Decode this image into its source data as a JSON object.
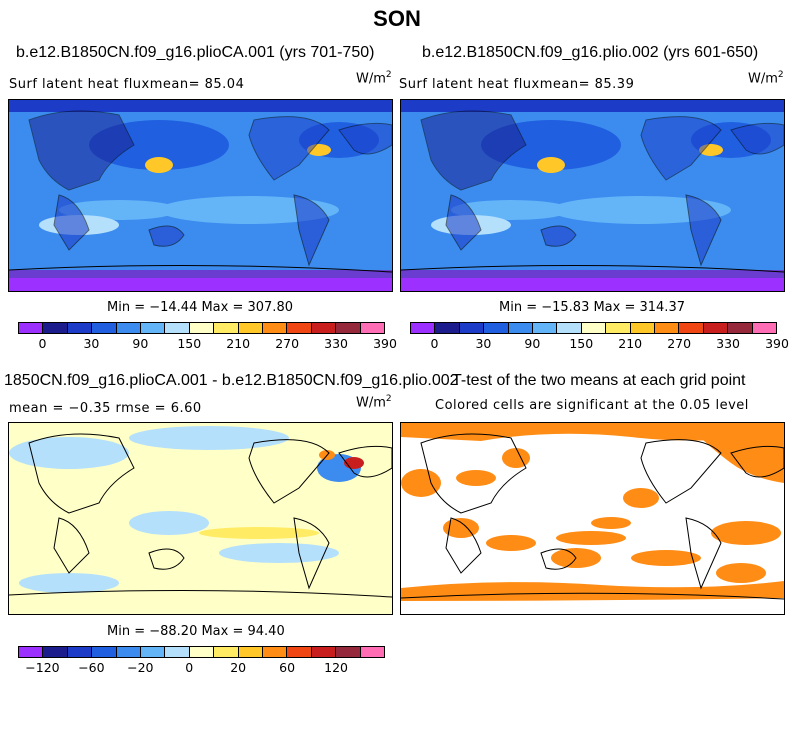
{
  "figure": {
    "title": "SON"
  },
  "panel1": {
    "title": "b.e12.B1850CN.f09_g16.plioCA.001 (yrs 701-750)",
    "left_text": "Surf latent heat fluxmean=  85.04",
    "units_base": "W/m",
    "units_exp": "2",
    "minmax": "Min = −14.44 Max = 307.80"
  },
  "panel2": {
    "title": "b.e12.B1850CN.f09_g16.plio.002 (yrs 601-650)",
    "left_text": "Surf latent heat fluxmean=  85.39",
    "units_base": "W/m",
    "units_exp": "2",
    "minmax": "Min = −15.83 Max = 314.37"
  },
  "panel3": {
    "title": "1850CN.f09_g16.plioCA.001 - b.e12.B1850CN.f09_g16.plio.002",
    "left_text": "mean =  −0.35     rmse =    6.60",
    "units_base": "W/m",
    "units_exp": "2",
    "minmax": "Min = −88.20 Max = 94.40"
  },
  "panel4": {
    "title": "T-test of the two means at each grid point",
    "subtitle": "Colored cells are significant at the 0.05 level"
  },
  "colorbar_abs": {
    "labels": [
      "0",
      "30",
      "90",
      "150",
      "210",
      "270",
      "330",
      "390"
    ],
    "colors": [
      "#9b30ff",
      "#1c1c8c",
      "#1c3cc8",
      "#2060e0",
      "#3c8cf0",
      "#64b4f8",
      "#b4e0fc",
      "#ffffc8",
      "#ffec64",
      "#ffc828",
      "#ff8c14",
      "#f04614",
      "#c81e1e",
      "#96283c",
      "#ff6eb4"
    ]
  },
  "colorbar_diff": {
    "labels": [
      "−120",
      "−60",
      "−20",
      "0",
      "20",
      "60",
      "120"
    ],
    "colors": [
      "#9b30ff",
      "#1c1c8c",
      "#1c3cc8",
      "#2060e0",
      "#3c8cf0",
      "#64b4f8",
      "#b4e0fc",
      "#ffffc8",
      "#ffec64",
      "#ffc828",
      "#ff8c14",
      "#f04614",
      "#c81e1e",
      "#96283c",
      "#ff6eb4"
    ]
  },
  "colors": {
    "ttest_fill": "#ff8c14",
    "map_base": "#3c8cf0",
    "diff_base": "#ffffc8"
  }
}
